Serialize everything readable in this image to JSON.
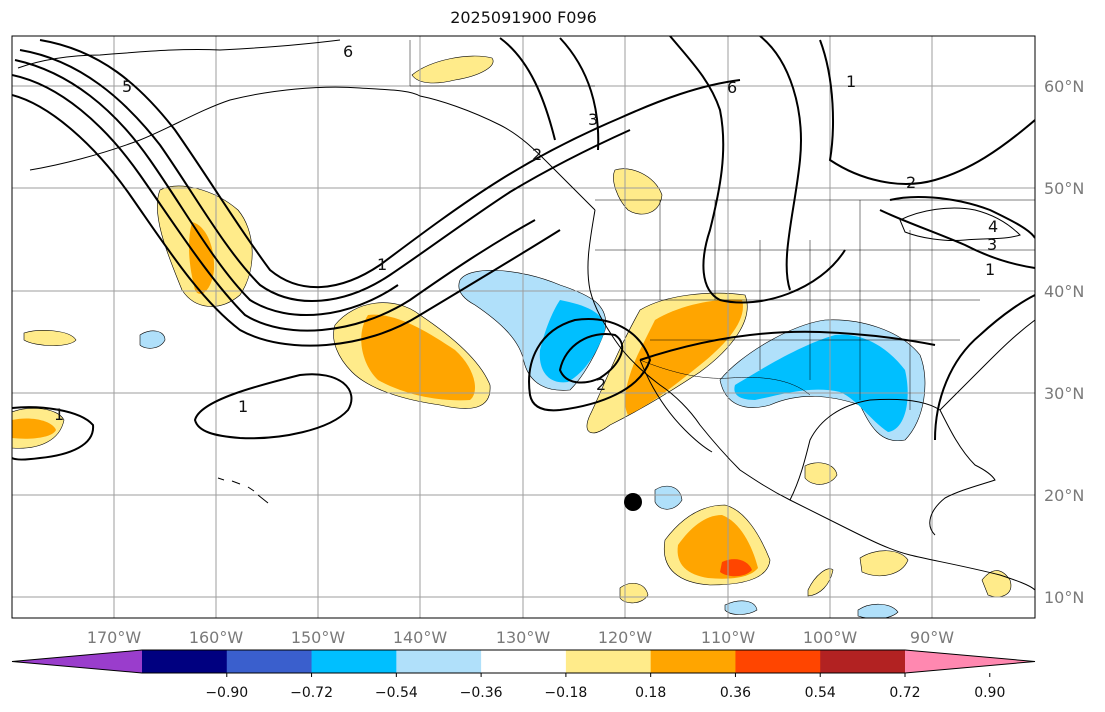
{
  "title": "2025091900 F096",
  "lon_ticks": [
    "170°W",
    "160°W",
    "150°W",
    "140°W",
    "130°W",
    "120°W",
    "110°W",
    "100°W",
    "90°W"
  ],
  "lat_ticks": [
    "60°N",
    "50°N",
    "40°N",
    "30°N",
    "20°N",
    "10°N"
  ],
  "colorbar": {
    "labels": [
      "−0.90",
      "−0.72",
      "−0.54",
      "−0.36",
      "−0.18",
      "0.18",
      "0.36",
      "0.54",
      "0.72",
      "0.90"
    ],
    "colors": [
      "#9a3dcc",
      "#000080",
      "#3a5fcd",
      "#00bfff",
      "#b0e0fa",
      "#ffffff",
      "#ffeb8a",
      "#ffa500",
      "#ff4500",
      "#b22222",
      "#ff88b0"
    ]
  },
  "contour_labels": [
    "6",
    "5",
    "3",
    "6",
    "1",
    "2",
    "2",
    "1",
    "1",
    "4",
    "3",
    "1",
    "1",
    "2"
  ],
  "marker": {
    "lon": -119.2,
    "lat": 19.3
  },
  "colors": {
    "land_line": "#000000",
    "grid": "#9e9e9e",
    "pos_low": "#ffeb8a",
    "pos_mid": "#ffa500",
    "pos_high": "#ff4500",
    "neg_low": "#b0e0fa",
    "neg_mid": "#00bfff"
  }
}
